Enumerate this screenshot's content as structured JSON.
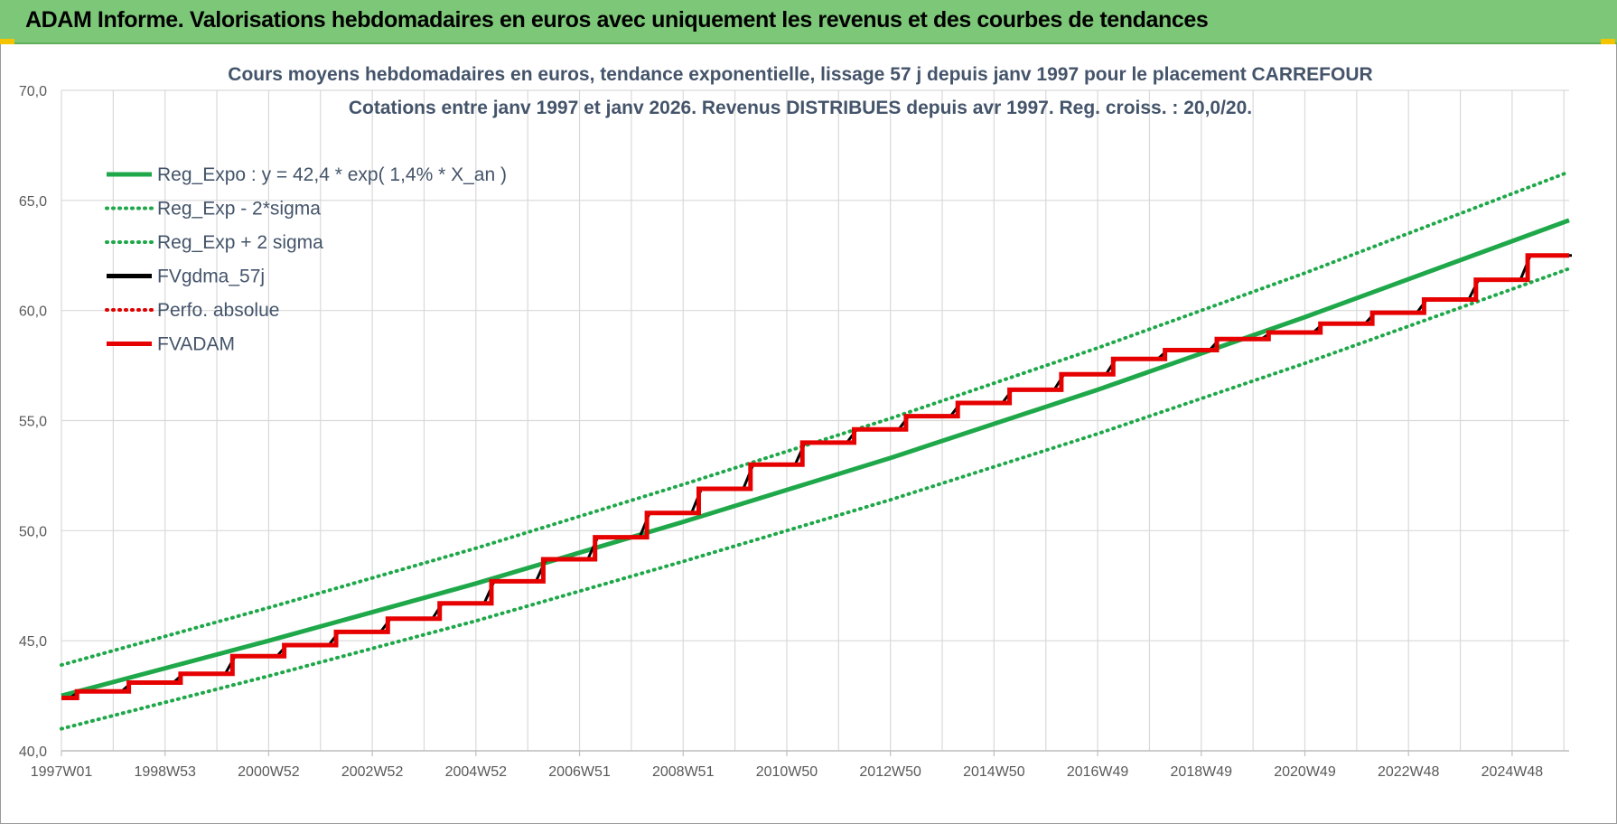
{
  "banner": {
    "title": "ADAM Informe. Valorisations hebdomadaires en euros avec uniquement les revenus et des courbes de tendances"
  },
  "colors": {
    "banner_bg": "#7dc878",
    "trend": "#1fa84a",
    "fv_gdma": "#000000",
    "perfo": "#e00000",
    "fvadam": "#e60000",
    "grid": "#d9d9d9",
    "axis_text": "#595959",
    "title_text": "#44546a"
  },
  "chart_data": {
    "type": "line",
    "title": "Cours moyens hebdomadaires en euros, tendance exponentielle, lissage 57 j depuis janv 1997  pour le placement CARREFOUR",
    "subtitle": "Cotations entre janv 1997 et janv 2026. Revenus DISTRIBUES depuis avr 1997.  Reg. croiss. : 20,0/20.",
    "x_range_years": [
      1997.0,
      2026.1
    ],
    "x_ticks": [
      {
        "label": "1997W01",
        "year": 1997.0
      },
      {
        "label": "1998W53",
        "year": 1999.0
      },
      {
        "label": "2000W52",
        "year": 2001.0
      },
      {
        "label": "2002W52",
        "year": 2003.0
      },
      {
        "label": "2004W52",
        "year": 2005.0
      },
      {
        "label": "2006W51",
        "year": 2007.0
      },
      {
        "label": "2008W51",
        "year": 2009.0
      },
      {
        "label": "2010W50",
        "year": 2011.0
      },
      {
        "label": "2012W50",
        "year": 2013.0
      },
      {
        "label": "2014W50",
        "year": 2015.0
      },
      {
        "label": "2016W49",
        "year": 2017.0
      },
      {
        "label": "2018W49",
        "year": 2019.0
      },
      {
        "label": "2020W49",
        "year": 2021.0
      },
      {
        "label": "2022W48",
        "year": 2023.0
      },
      {
        "label": "2024W48",
        "year": 2025.0
      }
    ],
    "ylim": [
      40,
      70
    ],
    "y_ticks": [
      "40,0",
      "45,0",
      "50,0",
      "55,0",
      "60,0",
      "65,0",
      "70,0"
    ],
    "y_tick_values": [
      40,
      45,
      50,
      55,
      60,
      65,
      70
    ],
    "grid": true,
    "legend_position": "top-left",
    "legend": [
      {
        "label": "Reg_Expo : y = 42,4 * exp( 1,4% *  X_an )",
        "style": "solid",
        "color": "#1fa84a"
      },
      {
        "label": "Reg_Exp - 2*sigma",
        "style": "dotted",
        "color": "#1fa84a"
      },
      {
        "label": "Reg_Exp + 2 sigma",
        "style": "dotted",
        "color": "#1fa84a"
      },
      {
        "label": "FVgdma_57j",
        "style": "solid",
        "color": "#000000"
      },
      {
        "label": "Perfo. absolue",
        "style": "dotted",
        "color": "#e00000"
      },
      {
        "label": "FVADAM",
        "style": "solid",
        "color": "#e60000"
      }
    ],
    "series": [
      {
        "name": "Reg_Expo : y = 42,4 * exp( 1,4% *  X_an )",
        "x": [
          1997.0,
          2001.0,
          2005.0,
          2009.0,
          2013.0,
          2017.0,
          2021.0,
          2026.1
        ],
        "values": [
          42.5,
          45.0,
          47.6,
          50.4,
          53.3,
          56.4,
          59.7,
          64.1
        ]
      },
      {
        "name": "Reg_Exp - 2*sigma",
        "x": [
          1997.0,
          2001.0,
          2005.0,
          2009.0,
          2013.0,
          2017.0,
          2021.0,
          2026.1
        ],
        "values": [
          41.0,
          43.4,
          45.9,
          48.6,
          51.4,
          54.4,
          57.6,
          61.9
        ]
      },
      {
        "name": "Reg_Exp + 2 sigma",
        "x": [
          1997.0,
          2001.0,
          2005.0,
          2009.0,
          2013.0,
          2017.0,
          2021.0,
          2026.1
        ],
        "values": [
          43.9,
          46.5,
          49.2,
          52.1,
          55.1,
          58.3,
          61.7,
          66.3
        ]
      },
      {
        "name": "FVADAM",
        "step_years": [
          1997.0,
          1997.3,
          1998.3,
          1999.3,
          2000.3,
          2001.3,
          2002.3,
          2003.3,
          2004.3,
          2005.3,
          2006.3,
          2007.3,
          2008.3,
          2009.3,
          2010.3,
          2011.3,
          2012.3,
          2013.3,
          2014.3,
          2015.3,
          2016.3,
          2017.3,
          2018.3,
          2019.3,
          2020.3,
          2021.3,
          2022.3,
          2023.3,
          2024.3,
          2025.3,
          2026.1
        ],
        "values": [
          42.4,
          42.7,
          43.1,
          43.5,
          44.3,
          44.8,
          45.4,
          46.0,
          46.7,
          47.7,
          48.7,
          49.7,
          50.8,
          51.9,
          53.0,
          54.0,
          54.6,
          55.2,
          55.8,
          56.4,
          57.1,
          57.8,
          58.2,
          58.7,
          59.0,
          59.4,
          59.9,
          60.5,
          61.4,
          62.5,
          62.5
        ]
      }
    ]
  }
}
